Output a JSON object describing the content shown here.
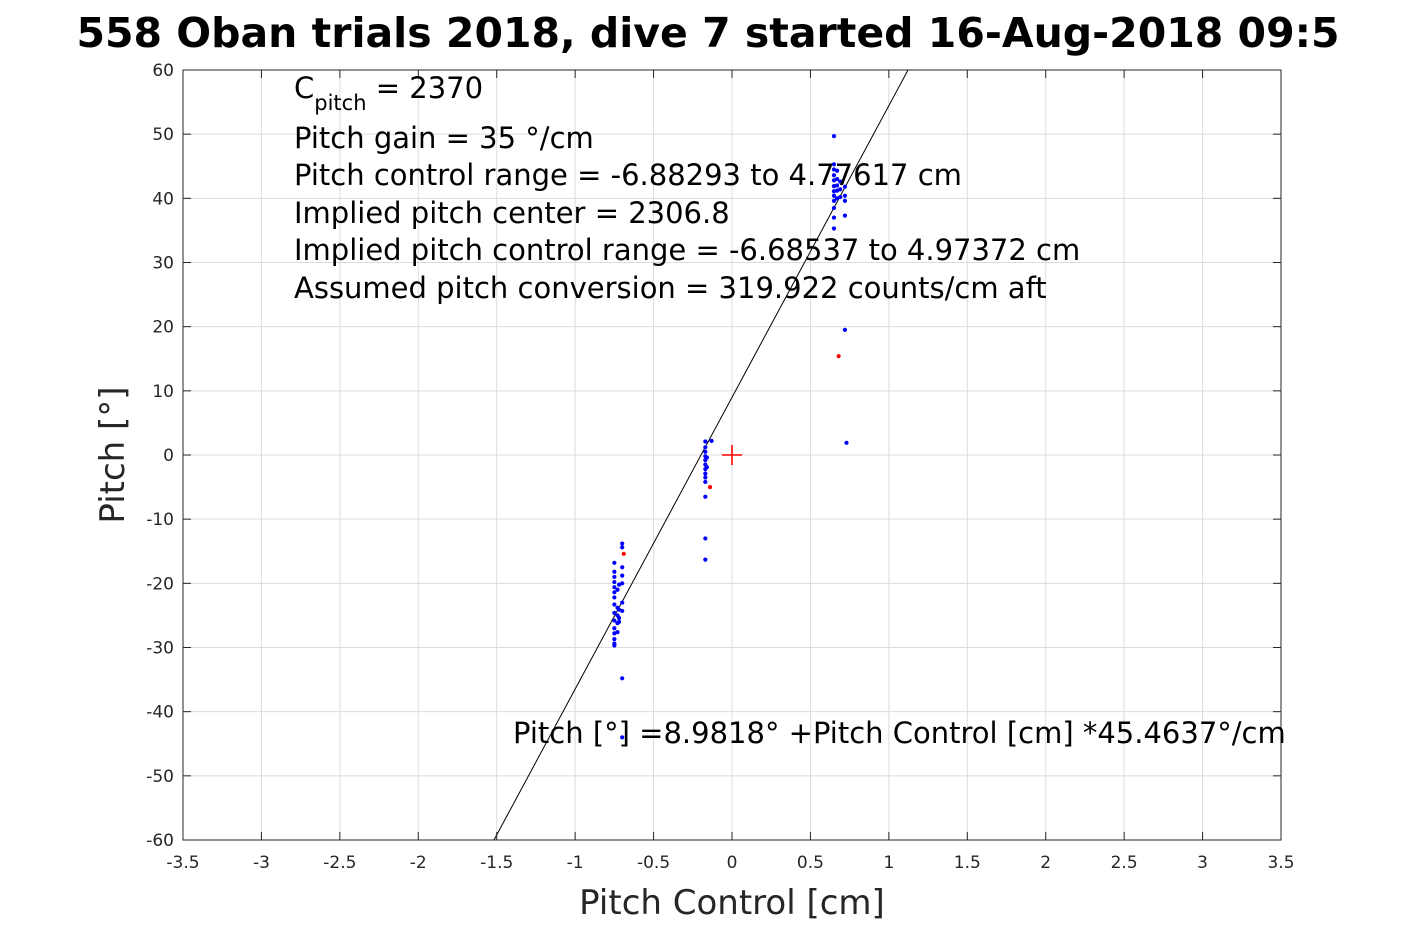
{
  "chart_data": {
    "type": "scatter",
    "title": "558 Oban trials 2018, dive 7 started 16-Aug-2018 09:5",
    "xlabel": "Pitch Control [cm]",
    "ylabel": "Pitch [°]",
    "xlim": [
      -3.5,
      3.5
    ],
    "ylim": [
      -60,
      60
    ],
    "xticks": [
      -3.5,
      -3,
      -2.5,
      -2,
      -1.5,
      -1,
      -0.5,
      0,
      0.5,
      1,
      1.5,
      2,
      2.5,
      3,
      3.5
    ],
    "xtick_labels": [
      "-3.5",
      "-3",
      "-2.5",
      "-2",
      "-1.5",
      "-1",
      "-0.5",
      "0",
      "0.5",
      "1",
      "1.5",
      "2",
      "2.5",
      "3",
      "3.5"
    ],
    "yticks": [
      -60,
      -50,
      -40,
      -30,
      -20,
      -10,
      0,
      10,
      20,
      30,
      40,
      50,
      60
    ],
    "ytick_labels": [
      "-60",
      "-50",
      "-40",
      "-30",
      "-20",
      "-10",
      "0",
      "10",
      "20",
      "30",
      "40",
      "50",
      "60"
    ],
    "grid": true,
    "annotations": {
      "cpitch_symbol": "C",
      "cpitch_subscript": "pitch",
      "cpitch_value": " = 2370",
      "lines": [
        "Pitch gain = 35 °/cm",
        "Pitch control range = -6.88293 to 4.77617 cm",
        "Implied pitch center = 2306.8",
        "Implied pitch control range = -6.68537 to 4.97372 cm",
        "Assumed pitch conversion = 319.922 counts/cm aft"
      ],
      "fit_equation": "Pitch [°] =8.9818° +Pitch Control [cm] *45.4637°/cm"
    },
    "fit_line": {
      "intercept": 8.9818,
      "slope": 45.4637,
      "color": "#000000"
    },
    "center_marker": {
      "x": 0,
      "y": 0,
      "color": "#ff0000"
    },
    "series": [
      {
        "color": "#0000ff",
        "points": [
          [
            -0.75,
            -16.8
          ],
          [
            -0.75,
            -18.2
          ],
          [
            -0.75,
            -19.0
          ],
          [
            -0.75,
            -19.8
          ],
          [
            -0.75,
            -20.6
          ],
          [
            -0.75,
            -21.4
          ],
          [
            -0.75,
            -22.2
          ],
          [
            -0.75,
            -23.3
          ],
          [
            -0.75,
            -24.6
          ],
          [
            -0.75,
            -25.8
          ],
          [
            -0.75,
            -27.0
          ],
          [
            -0.75,
            -27.8
          ],
          [
            -0.75,
            -28.7
          ],
          [
            -0.75,
            -29.4
          ],
          [
            -0.75,
            -29.7
          ],
          [
            -0.73,
            -21.0
          ],
          [
            -0.73,
            -23.8
          ],
          [
            -0.73,
            -25.0
          ],
          [
            -0.73,
            -26.2
          ],
          [
            -0.73,
            -27.6
          ],
          [
            -0.72,
            -20.2
          ],
          [
            -0.72,
            -24.1
          ],
          [
            -0.72,
            -25.4
          ],
          [
            -0.72,
            -26.0
          ],
          [
            -0.7,
            -13.8
          ],
          [
            -0.7,
            -14.4
          ],
          [
            -0.7,
            -17.5
          ],
          [
            -0.7,
            -18.8
          ],
          [
            -0.7,
            -20.0
          ],
          [
            -0.7,
            -23.0
          ],
          [
            -0.7,
            -24.3
          ],
          [
            -0.7,
            -34.8
          ],
          [
            -0.7,
            -44.0
          ],
          [
            -0.17,
            2.1
          ],
          [
            -0.17,
            1.2
          ],
          [
            -0.17,
            0.5
          ],
          [
            -0.17,
            -0.2
          ],
          [
            -0.17,
            -0.8
          ],
          [
            -0.17,
            -1.5
          ],
          [
            -0.17,
            -2.2
          ],
          [
            -0.17,
            -2.9
          ],
          [
            -0.17,
            -3.5
          ],
          [
            -0.17,
            -4.2
          ],
          [
            -0.17,
            -6.5
          ],
          [
            -0.17,
            -13.0
          ],
          [
            -0.17,
            -16.3
          ],
          [
            -0.16,
            -0.4
          ],
          [
            -0.16,
            -1.9
          ],
          [
            -0.13,
            2.2
          ],
          [
            0.65,
            49.7
          ],
          [
            0.65,
            45.3
          ],
          [
            0.65,
            44.5
          ],
          [
            0.65,
            43.6
          ],
          [
            0.65,
            42.8
          ],
          [
            0.65,
            41.9
          ],
          [
            0.65,
            41.1
          ],
          [
            0.65,
            40.4
          ],
          [
            0.65,
            39.6
          ],
          [
            0.65,
            38.5
          ],
          [
            0.65,
            37.0
          ],
          [
            0.65,
            35.3
          ],
          [
            0.67,
            44.3
          ],
          [
            0.67,
            43.0
          ],
          [
            0.67,
            42.0
          ],
          [
            0.67,
            41.2
          ],
          [
            0.67,
            40.0
          ],
          [
            0.69,
            42.6
          ],
          [
            0.69,
            41.4
          ],
          [
            0.69,
            40.2
          ],
          [
            0.72,
            41.8
          ],
          [
            0.72,
            40.4
          ],
          [
            0.72,
            39.6
          ],
          [
            0.72,
            37.3
          ],
          [
            0.72,
            19.5
          ],
          [
            0.73,
            1.9
          ]
        ]
      },
      {
        "color": "#ff0000",
        "points": [
          [
            -0.69,
            -15.4
          ],
          [
            -0.14,
            -5.0
          ],
          [
            0.68,
            15.4
          ]
        ]
      }
    ]
  }
}
